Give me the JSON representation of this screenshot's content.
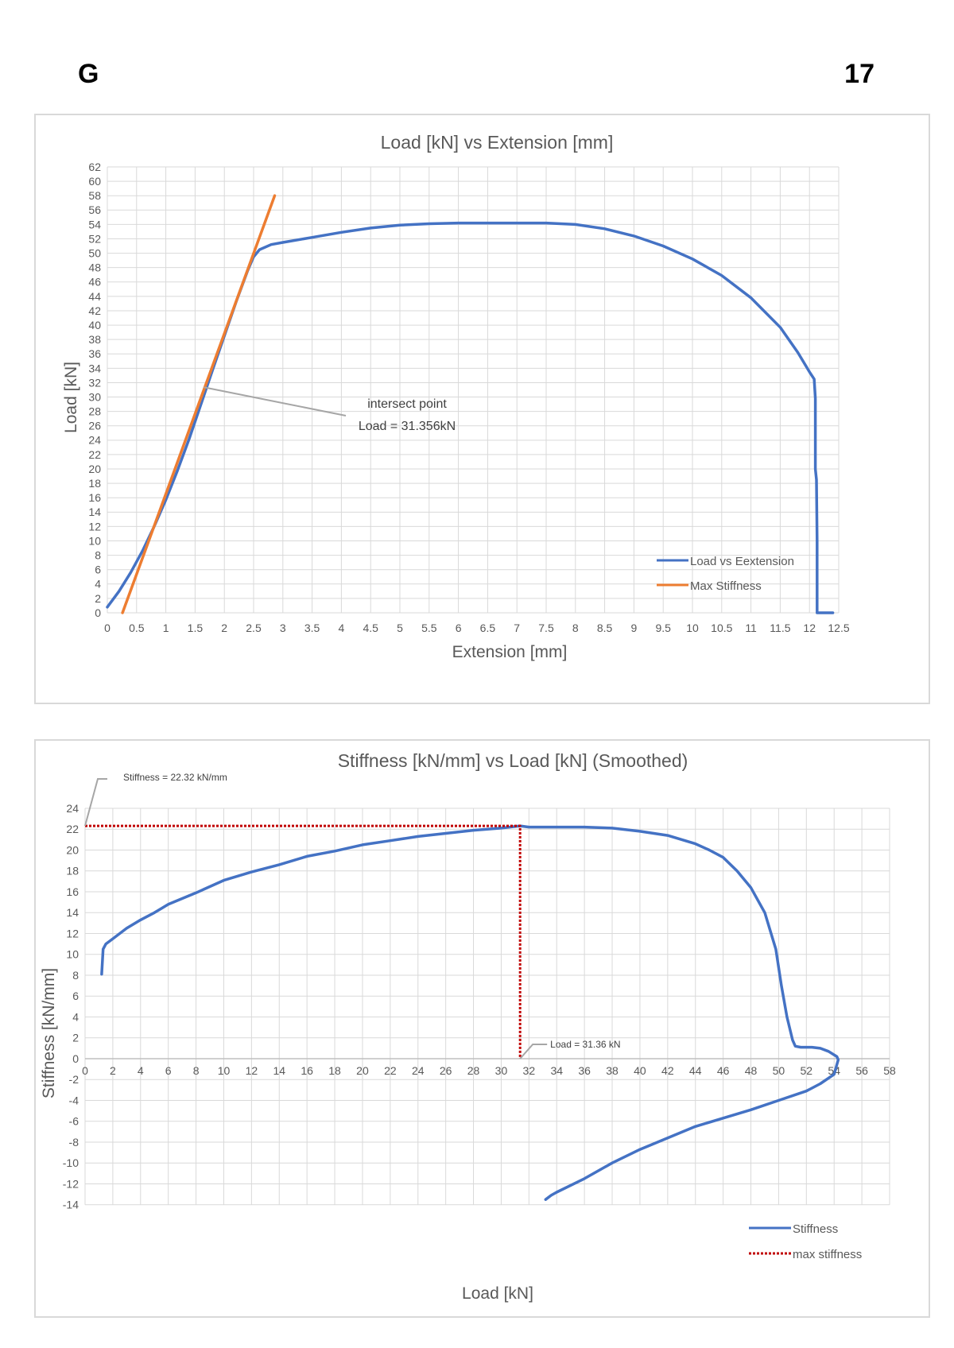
{
  "page": {
    "letter": "G",
    "number": "17"
  },
  "chart_data": [
    {
      "type": "line",
      "title": "Load [kN] vs Extension [mm]",
      "xlabel": "Extension [mm]",
      "ylabel": "Load [kN]",
      "xlim": [
        0,
        12.5
      ],
      "ylim": [
        0,
        62
      ],
      "xticks": [
        "0",
        "0.5",
        "1",
        "1.5",
        "2",
        "2.5",
        "3",
        "3.5",
        "4",
        "4.5",
        "5",
        "5.5",
        "6",
        "6.5",
        "7",
        "7.5",
        "8",
        "8.5",
        "9",
        "9.5",
        "10",
        "10.5",
        "11",
        "11.5",
        "12",
        "12.5"
      ],
      "yticks": [
        "0",
        "2",
        "4",
        "6",
        "8",
        "10",
        "12",
        "14",
        "16",
        "18",
        "20",
        "22",
        "24",
        "26",
        "28",
        "30",
        "32",
        "34",
        "36",
        "38",
        "40",
        "42",
        "44",
        "46",
        "48",
        "50",
        "52",
        "54",
        "56",
        "58",
        "60",
        "62"
      ],
      "grid": true,
      "legend_position": "bottom-right",
      "series": [
        {
          "name": "Load vs Eextension",
          "color": "#4472c4",
          "x": [
            0,
            0.2,
            0.4,
            0.6,
            0.8,
            1.0,
            1.2,
            1.4,
            1.6,
            1.8,
            2.0,
            2.2,
            2.4,
            2.5,
            2.6,
            2.8,
            3.0,
            3.5,
            4.0,
            4.5,
            5.0,
            5.5,
            6.0,
            6.5,
            7.0,
            7.5,
            8.0,
            8.5,
            9.0,
            9.5,
            10.0,
            10.5,
            11.0,
            11.5,
            11.8,
            12.0,
            12.08,
            12.1,
            12.1,
            12.12,
            12.13,
            12.13,
            12.4
          ],
          "y": [
            0.8,
            3,
            5.6,
            8.6,
            12,
            15.7,
            19.8,
            24.2,
            29,
            33.8,
            38.5,
            43.2,
            47.6,
            49.5,
            50.5,
            51.2,
            51.5,
            52.2,
            52.9,
            53.5,
            53.9,
            54.1,
            54.2,
            54.2,
            54.2,
            54.2,
            54,
            53.4,
            52.4,
            51,
            49.2,
            46.9,
            43.8,
            39.7,
            36.2,
            33.5,
            32.5,
            29.8,
            20,
            18.5,
            10,
            0,
            0
          ]
        },
        {
          "name": "Max Stiffness",
          "color": "#ed7d31",
          "x": [
            0.26,
            2.86
          ],
          "y": [
            0,
            58
          ]
        }
      ],
      "annotations": [
        {
          "text_line1": "intersect point",
          "text_line2": "Load = 31.356kN",
          "point_x": 1.65,
          "point_y": 31.356
        }
      ]
    },
    {
      "type": "line",
      "title": "Stiffness [kN/mm] vs Load [kN] (Smoothed)",
      "xlabel": "Load [kN]",
      "ylabel": "Stiffness [kN/mm]",
      "xlim": [
        0,
        58
      ],
      "ylim": [
        -14,
        24
      ],
      "xticks": [
        "0",
        "2",
        "4",
        "6",
        "8",
        "10",
        "12",
        "14",
        "16",
        "18",
        "20",
        "22",
        "24",
        "26",
        "28",
        "30",
        "32",
        "34",
        "36",
        "38",
        "40",
        "42",
        "44",
        "46",
        "48",
        "50",
        "52",
        "54",
        "56",
        "58"
      ],
      "yticks": [
        "-14",
        "-12",
        "-10",
        "-8",
        "-6",
        "-4",
        "-2",
        "0",
        "2",
        "4",
        "6",
        "8",
        "10",
        "12",
        "14",
        "16",
        "18",
        "20",
        "22",
        "24"
      ],
      "grid": true,
      "legend_position": "bottom-right",
      "series": [
        {
          "name": "Stiffness",
          "color": "#4472c4",
          "x": [
            1.2,
            1.3,
            1.5,
            2.0,
            3,
            4,
            5,
            6,
            8,
            10,
            12,
            14,
            16,
            18,
            20,
            22,
            24,
            26,
            28,
            30,
            31.36,
            32,
            34,
            36,
            38,
            40,
            42,
            44,
            45,
            46,
            47,
            48,
            49,
            49.8,
            50.2,
            50.6,
            51,
            51.2,
            51.6,
            52,
            52.4,
            53,
            53.6,
            54.2,
            54.3,
            54,
            53,
            52,
            50,
            48,
            46,
            44,
            42,
            40,
            38,
            36,
            34,
            33.6,
            33.2
          ],
          "y": [
            8.1,
            10.5,
            11,
            11.5,
            12.5,
            13.3,
            14,
            14.8,
            15.9,
            17.1,
            17.9,
            18.6,
            19.4,
            19.9,
            20.5,
            20.9,
            21.3,
            21.6,
            21.9,
            22.1,
            22.32,
            22.2,
            22.2,
            22.2,
            22.1,
            21.8,
            21.4,
            20.6,
            20,
            19.3,
            18,
            16.4,
            14,
            10.5,
            7,
            4,
            1.8,
            1.2,
            1.1,
            1.1,
            1.1,
            1,
            0.7,
            0.2,
            -0.1,
            -1.5,
            -2.4,
            -3.1,
            -4,
            -4.9,
            -5.7,
            -6.5,
            -7.6,
            -8.7,
            -10,
            -11.5,
            -12.8,
            -13.1,
            -13.5
          ]
        },
        {
          "name": "max stiffness",
          "color": "#c00000",
          "x": [
            0,
            31.36,
            31.36
          ],
          "y": [
            22.32,
            22.32,
            0
          ]
        }
      ],
      "annotations": [
        {
          "text": "Stiffness = 22.32 kN/mm",
          "point_x": 0,
          "point_y": 22.32
        },
        {
          "text": "Load = 31.36 kN",
          "point_x": 31.36,
          "point_y": 0
        }
      ]
    }
  ]
}
